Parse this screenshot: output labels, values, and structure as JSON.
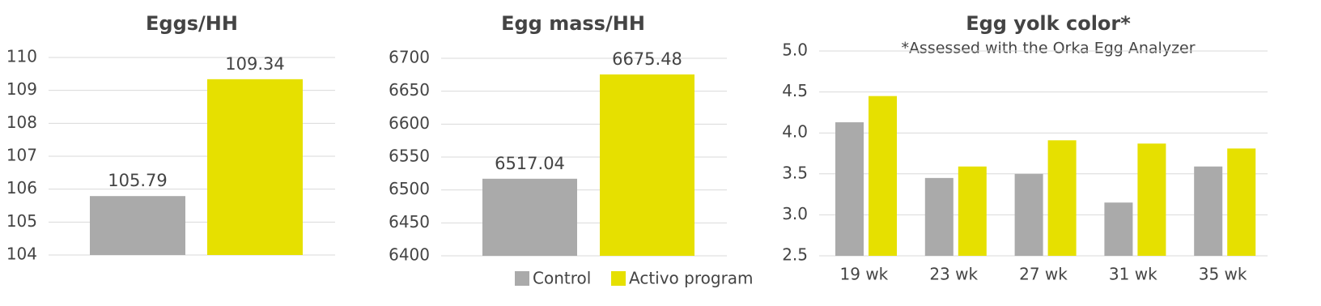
{
  "chart_data": [
    {
      "type": "bar",
      "title": "Eggs/HH",
      "values": [
        105.79,
        109.34
      ],
      "colors": [
        "#aaaaaa",
        "#e6e000"
      ],
      "ylim": [
        104,
        110
      ],
      "yticks": [
        104,
        105,
        106,
        107,
        108,
        109,
        110
      ],
      "grid": true,
      "data_labels": true
    },
    {
      "type": "bar",
      "title": "Egg mass/HH",
      "values": [
        6517.04,
        6675.48
      ],
      "colors": [
        "#aaaaaa",
        "#e6e000"
      ],
      "ylim": [
        6400,
        6700
      ],
      "yticks": [
        6400,
        6450,
        6500,
        6550,
        6600,
        6650,
        6700
      ],
      "grid": true,
      "data_labels": true
    },
    {
      "type": "grouped_bar",
      "title": "Egg yolk color*",
      "subtitle": "*Assessed with the Orka Egg Analyzer",
      "categories": [
        "19 wk",
        "23 wk",
        "27 wk",
        "31 wk",
        "35 wk"
      ],
      "series": [
        {
          "name": "Control",
          "color": "#aaaaaa",
          "values": [
            4.13,
            3.45,
            3.5,
            3.15,
            3.59
          ]
        },
        {
          "name": "Activo program",
          "color": "#e6e000",
          "values": [
            4.45,
            3.59,
            3.91,
            3.87,
            3.81
          ]
        }
      ],
      "ylim": [
        2.5,
        5.0
      ],
      "yticks": [
        2.5,
        {
          "value": 3,
          "label": "3.0"
        },
        3.5,
        {
          "value": 4,
          "label": "4.0"
        },
        4.5,
        {
          "value": 5,
          "label": "5.0"
        }
      ],
      "grid": true,
      "legend": "bottom"
    }
  ]
}
